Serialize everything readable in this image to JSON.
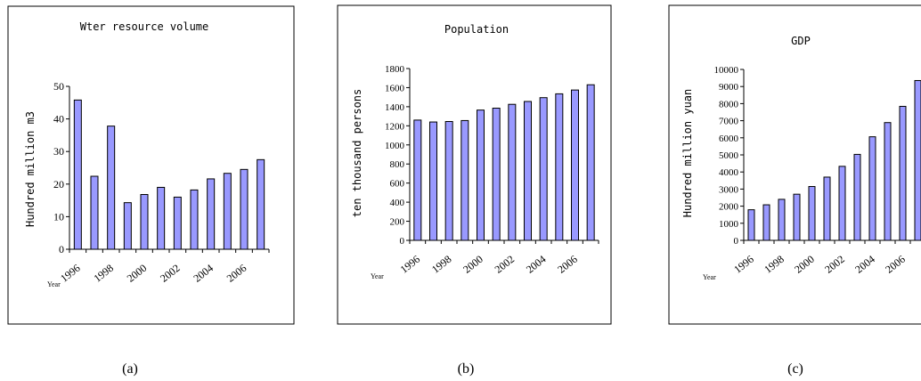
{
  "panel_labels": [
    "(a)",
    "(b)",
    "(c)"
  ],
  "colors": {
    "bar_fill": "#9999ff",
    "bar_stroke": "#000000",
    "frame": "#000000"
  },
  "chart_data": [
    {
      "type": "bar",
      "title": "Wter resource volume",
      "ylabel": "Hundred million m3",
      "xlabel": "Year",
      "ylim": [
        0,
        50
      ],
      "yticks": [
        0,
        10,
        20,
        30,
        40,
        50
      ],
      "categories": [
        "1996",
        "1997",
        "1998",
        "1999",
        "2000",
        "2001",
        "2002",
        "2003",
        "2004",
        "2005",
        "2006",
        "2007"
      ],
      "tick_labels": [
        "1996",
        "1998",
        "2000",
        "2002",
        "2004",
        "2006"
      ],
      "values": [
        45.8,
        22.4,
        37.8,
        14.3,
        16.8,
        19.0,
        16.0,
        18.2,
        21.6,
        23.3,
        24.5,
        27.5
      ],
      "grid": false
    },
    {
      "type": "bar",
      "title": "Population",
      "ylabel": "ten thousand persons",
      "xlabel": "Year",
      "ylim": [
        0,
        1800
      ],
      "yticks": [
        0,
        200,
        400,
        600,
        800,
        1000,
        1200,
        1400,
        1600,
        1800
      ],
      "categories": [
        "1996",
        "1997",
        "1998",
        "1999",
        "2000",
        "2001",
        "2002",
        "2003",
        "2004",
        "2005",
        "2006",
        "2007"
      ],
      "tick_labels": [
        "1996",
        "1998",
        "2000",
        "2002",
        "2004",
        "2006"
      ],
      "values": [
        1260,
        1240,
        1245,
        1255,
        1365,
        1385,
        1425,
        1455,
        1495,
        1535,
        1575,
        1630
      ],
      "grid": false
    },
    {
      "type": "bar",
      "title": "GDP",
      "ylabel": "Hundred million yuan",
      "xlabel": "Year",
      "ylim": [
        0,
        10000
      ],
      "yticks": [
        0,
        1000,
        2000,
        3000,
        4000,
        5000,
        6000,
        7000,
        8000,
        9000,
        10000
      ],
      "categories": [
        "1996",
        "1997",
        "1998",
        "1999",
        "2000",
        "2001",
        "2002",
        "2003",
        "2004",
        "2005",
        "2006",
        "2007"
      ],
      "tick_labels": [
        "1996",
        "1998",
        "2000",
        "2002",
        "2004",
        "2006"
      ],
      "values": [
        1790,
        2080,
        2400,
        2700,
        3150,
        3700,
        4330,
        5030,
        6060,
        6890,
        7840,
        9350
      ],
      "grid": false
    }
  ]
}
